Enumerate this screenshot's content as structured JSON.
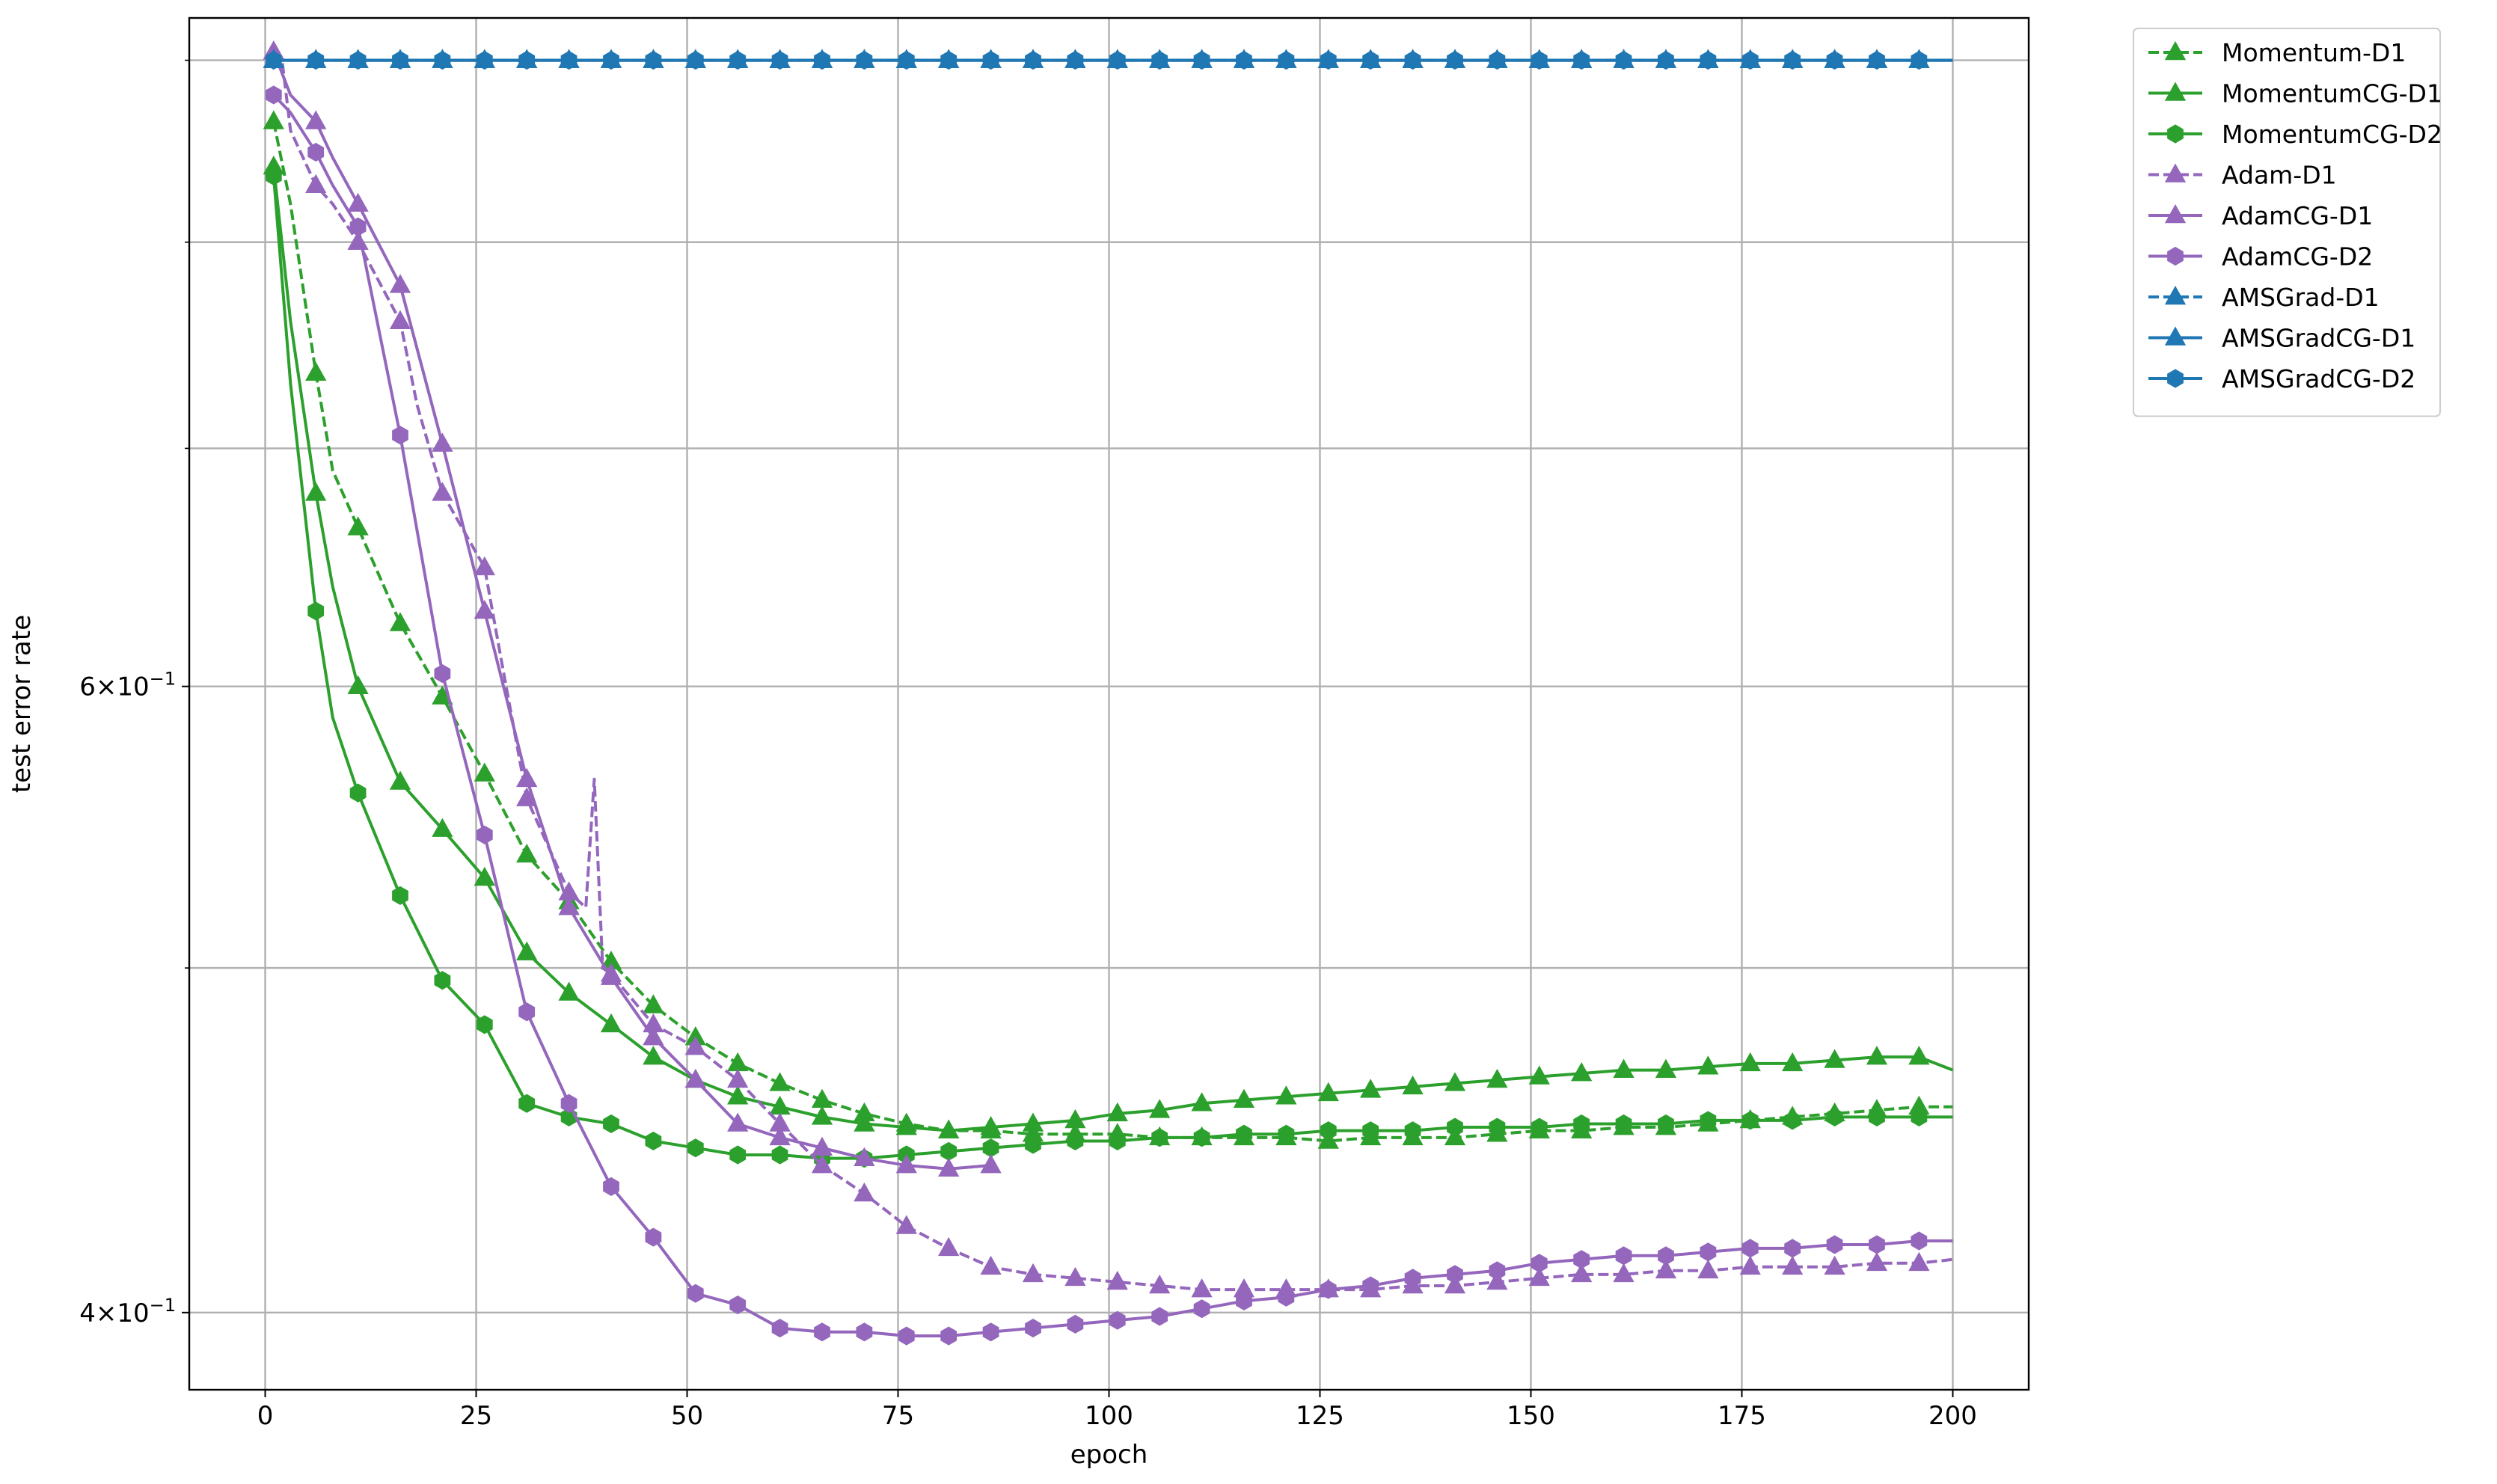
{
  "chart_data": {
    "type": "line",
    "title": "",
    "xlabel": "epoch",
    "ylabel": "test error rate",
    "yscale": "log",
    "xlim": [
      -9,
      209
    ],
    "ylim": [
      0.3805,
      0.925
    ],
    "grid": true,
    "legend_position": "outside-top-right",
    "x_ticks": [
      0,
      25,
      50,
      75,
      100,
      125,
      150,
      175,
      200
    ],
    "x_tick_labels": [
      "0",
      "25",
      "50",
      "75",
      "100",
      "125",
      "150",
      "175",
      "200"
    ],
    "y_major_ticks": [
      0.4,
      0.6
    ],
    "y_major_labels": [
      {
        "mantissa": "4",
        "exponent": "−1"
      },
      {
        "mantissa": "6",
        "exponent": "−1"
      }
    ],
    "y_minor_ticks": [
      0.5,
      0.7,
      0.8,
      0.9
    ],
    "colors": {
      "green": "#2ca02c",
      "purple": "#9467bd",
      "blue": "#1f77b4"
    },
    "series": [
      {
        "name": "Momentum-D1",
        "color": "#2ca02c",
        "dash": "dashed",
        "marker": "triangle",
        "mark_every": 5,
        "points": [
          [
            1,
            0.865
          ],
          [
            3,
            0.82
          ],
          [
            6,
            0.735
          ],
          [
            8,
            0.69
          ],
          [
            11,
            0.665
          ],
          [
            16,
            0.625
          ],
          [
            21,
            0.596
          ],
          [
            26,
            0.567
          ],
          [
            31,
            0.538
          ],
          [
            36,
            0.522
          ],
          [
            41,
            0.502
          ],
          [
            46,
            0.488
          ],
          [
            51,
            0.478
          ],
          [
            56,
            0.47
          ],
          [
            61,
            0.464
          ],
          [
            66,
            0.459
          ],
          [
            71,
            0.455
          ],
          [
            76,
            0.452
          ],
          [
            81,
            0.45
          ],
          [
            86,
            0.45
          ],
          [
            91,
            0.449
          ],
          [
            96,
            0.449
          ],
          [
            101,
            0.449
          ],
          [
            106,
            0.448
          ],
          [
            111,
            0.448
          ],
          [
            116,
            0.448
          ],
          [
            121,
            0.448
          ],
          [
            126,
            0.447
          ],
          [
            131,
            0.448
          ],
          [
            136,
            0.448
          ],
          [
            141,
            0.448
          ],
          [
            146,
            0.449
          ],
          [
            151,
            0.45
          ],
          [
            156,
            0.45
          ],
          [
            161,
            0.451
          ],
          [
            166,
            0.451
          ],
          [
            171,
            0.452
          ],
          [
            176,
            0.453
          ],
          [
            181,
            0.454
          ],
          [
            186,
            0.455
          ],
          [
            191,
            0.456
          ],
          [
            196,
            0.457
          ],
          [
            200,
            0.457
          ]
        ]
      },
      {
        "name": "MomentumCG-D1",
        "color": "#2ca02c",
        "dash": "solid",
        "marker": "triangle",
        "mark_every": 5,
        "points": [
          [
            1,
            0.84
          ],
          [
            3,
            0.76
          ],
          [
            6,
            0.68
          ],
          [
            8,
            0.64
          ],
          [
            11,
            0.6
          ],
          [
            16,
            0.564
          ],
          [
            21,
            0.547
          ],
          [
            26,
            0.53
          ],
          [
            31,
            0.505
          ],
          [
            36,
            0.492
          ],
          [
            41,
            0.482
          ],
          [
            46,
            0.472
          ],
          [
            51,
            0.465
          ],
          [
            56,
            0.46
          ],
          [
            61,
            0.457
          ],
          [
            66,
            0.454
          ],
          [
            71,
            0.452
          ],
          [
            76,
            0.451
          ],
          [
            81,
            0.45
          ],
          [
            86,
            0.451
          ],
          [
            91,
            0.452
          ],
          [
            96,
            0.453
          ],
          [
            101,
            0.455
          ],
          [
            106,
            0.456
          ],
          [
            111,
            0.458
          ],
          [
            116,
            0.459
          ],
          [
            121,
            0.46
          ],
          [
            126,
            0.461
          ],
          [
            131,
            0.462
          ],
          [
            136,
            0.463
          ],
          [
            141,
            0.464
          ],
          [
            146,
            0.465
          ],
          [
            151,
            0.466
          ],
          [
            156,
            0.467
          ],
          [
            161,
            0.468
          ],
          [
            166,
            0.468
          ],
          [
            171,
            0.469
          ],
          [
            176,
            0.47
          ],
          [
            181,
            0.47
          ],
          [
            186,
            0.471
          ],
          [
            191,
            0.472
          ],
          [
            196,
            0.472
          ],
          [
            200,
            0.468
          ]
        ]
      },
      {
        "name": "MomentumCG-D2",
        "color": "#2ca02c",
        "dash": "solid",
        "marker": "hexagon",
        "mark_every": 5,
        "points": [
          [
            1,
            0.835
          ],
          [
            3,
            0.73
          ],
          [
            6,
            0.63
          ],
          [
            8,
            0.588
          ],
          [
            11,
            0.56
          ],
          [
            16,
            0.524
          ],
          [
            21,
            0.496
          ],
          [
            26,
            0.482
          ],
          [
            31,
            0.458
          ],
          [
            36,
            0.454
          ],
          [
            41,
            0.452
          ],
          [
            46,
            0.447
          ],
          [
            51,
            0.445
          ],
          [
            56,
            0.443
          ],
          [
            61,
            0.443
          ],
          [
            66,
            0.442
          ],
          [
            71,
            0.442
          ],
          [
            76,
            0.443
          ],
          [
            81,
            0.444
          ],
          [
            86,
            0.445
          ],
          [
            91,
            0.446
          ],
          [
            96,
            0.447
          ],
          [
            101,
            0.447
          ],
          [
            106,
            0.448
          ],
          [
            111,
            0.448
          ],
          [
            116,
            0.449
          ],
          [
            121,
            0.449
          ],
          [
            126,
            0.45
          ],
          [
            131,
            0.45
          ],
          [
            136,
            0.45
          ],
          [
            141,
            0.451
          ],
          [
            146,
            0.451
          ],
          [
            151,
            0.451
          ],
          [
            156,
            0.452
          ],
          [
            161,
            0.452
          ],
          [
            166,
            0.452
          ],
          [
            171,
            0.453
          ],
          [
            176,
            0.453
          ],
          [
            181,
            0.453
          ],
          [
            186,
            0.454
          ],
          [
            191,
            0.454
          ],
          [
            196,
            0.454
          ],
          [
            200,
            0.454
          ]
        ]
      },
      {
        "name": "Adam-D1",
        "color": "#9467bd",
        "dash": "dashed",
        "marker": "triangle",
        "mark_every": 5,
        "points": [
          [
            1,
            0.905
          ],
          [
            2,
            0.9
          ],
          [
            3,
            0.86
          ],
          [
            6,
            0.83
          ],
          [
            8,
            0.82
          ],
          [
            11,
            0.8
          ],
          [
            16,
            0.76
          ],
          [
            18,
            0.72
          ],
          [
            21,
            0.68
          ],
          [
            26,
            0.648
          ],
          [
            28,
            0.61
          ],
          [
            31,
            0.558
          ],
          [
            36,
            0.525
          ],
          [
            38,
            0.52
          ],
          [
            39,
            0.565
          ],
          [
            40,
            0.5
          ],
          [
            41,
            0.498
          ],
          [
            46,
            0.482
          ],
          [
            51,
            0.475
          ],
          [
            56,
            0.465
          ],
          [
            61,
            0.452
          ],
          [
            66,
            0.44
          ],
          [
            71,
            0.432
          ],
          [
            76,
            0.423
          ],
          [
            81,
            0.417
          ],
          [
            86,
            0.412
          ],
          [
            91,
            0.41
          ],
          [
            96,
            0.409
          ],
          [
            101,
            0.408
          ],
          [
            106,
            0.407
          ],
          [
            111,
            0.406
          ],
          [
            116,
            0.406
          ],
          [
            121,
            0.406
          ],
          [
            126,
            0.406
          ],
          [
            131,
            0.406
          ],
          [
            136,
            0.407
          ],
          [
            141,
            0.407
          ],
          [
            146,
            0.408
          ],
          [
            151,
            0.409
          ],
          [
            156,
            0.41
          ],
          [
            161,
            0.41
          ],
          [
            166,
            0.411
          ],
          [
            171,
            0.411
          ],
          [
            176,
            0.412
          ],
          [
            181,
            0.412
          ],
          [
            186,
            0.412
          ],
          [
            191,
            0.413
          ],
          [
            196,
            0.413
          ],
          [
            200,
            0.414
          ]
        ]
      },
      {
        "name": "AdamCG-D1",
        "color": "#9467bd",
        "dash": "solid",
        "marker": "triangle",
        "mark_every": 5,
        "points": [
          [
            1,
            0.905
          ],
          [
            3,
            0.88
          ],
          [
            6,
            0.865
          ],
          [
            8,
            0.845
          ],
          [
            11,
            0.82
          ],
          [
            16,
            0.778
          ],
          [
            21,
            0.702
          ],
          [
            26,
            0.63
          ],
          [
            31,
            0.565
          ],
          [
            36,
            0.52
          ],
          [
            41,
            0.497
          ],
          [
            46,
            0.478
          ],
          [
            51,
            0.465
          ],
          [
            56,
            0.452
          ],
          [
            61,
            0.448
          ],
          [
            66,
            0.445
          ],
          [
            71,
            0.442
          ],
          [
            76,
            0.44
          ],
          [
            81,
            0.439
          ],
          [
            86,
            0.44
          ]
        ]
      },
      {
        "name": "AdamCG-D2",
        "color": "#9467bd",
        "dash": "solid",
        "marker": "hexagon",
        "mark_every": 5,
        "points": [
          [
            1,
            0.88
          ],
          [
            3,
            0.87
          ],
          [
            6,
            0.848
          ],
          [
            8,
            0.83
          ],
          [
            11,
            0.808
          ],
          [
            16,
            0.706
          ],
          [
            21,
            0.605
          ],
          [
            26,
            0.545
          ],
          [
            31,
            0.486
          ],
          [
            36,
            0.458
          ],
          [
            41,
            0.434
          ],
          [
            46,
            0.42
          ],
          [
            51,
            0.405
          ],
          [
            56,
            0.402
          ],
          [
            61,
            0.396
          ],
          [
            66,
            0.395
          ],
          [
            71,
            0.395
          ],
          [
            76,
            0.394
          ],
          [
            81,
            0.394
          ],
          [
            86,
            0.395
          ],
          [
            91,
            0.396
          ],
          [
            96,
            0.397
          ],
          [
            101,
            0.398
          ],
          [
            106,
            0.399
          ],
          [
            111,
            0.401
          ],
          [
            116,
            0.403
          ],
          [
            121,
            0.404
          ],
          [
            126,
            0.406
          ],
          [
            131,
            0.407
          ],
          [
            136,
            0.409
          ],
          [
            141,
            0.41
          ],
          [
            146,
            0.411
          ],
          [
            151,
            0.413
          ],
          [
            156,
            0.414
          ],
          [
            161,
            0.415
          ],
          [
            166,
            0.415
          ],
          [
            171,
            0.416
          ],
          [
            176,
            0.417
          ],
          [
            181,
            0.417
          ],
          [
            186,
            0.418
          ],
          [
            191,
            0.418
          ],
          [
            196,
            0.419
          ],
          [
            200,
            0.419
          ]
        ]
      },
      {
        "name": "AMSGrad-D1",
        "color": "#1f77b4",
        "dash": "dashed",
        "marker": "triangle",
        "mark_every": 5,
        "points": [
          [
            1,
            0.9
          ],
          [
            200,
            0.9
          ]
        ]
      },
      {
        "name": "AMSGradCG-D1",
        "color": "#1f77b4",
        "dash": "solid",
        "marker": "triangle",
        "mark_every": 5,
        "points": [
          [
            1,
            0.9
          ],
          [
            200,
            0.9
          ]
        ]
      },
      {
        "name": "AMSGradCG-D2",
        "color": "#1f77b4",
        "dash": "solid",
        "marker": "hexagon",
        "mark_every": 5,
        "points": [
          [
            1,
            0.9
          ],
          [
            200,
            0.9
          ]
        ]
      }
    ]
  }
}
